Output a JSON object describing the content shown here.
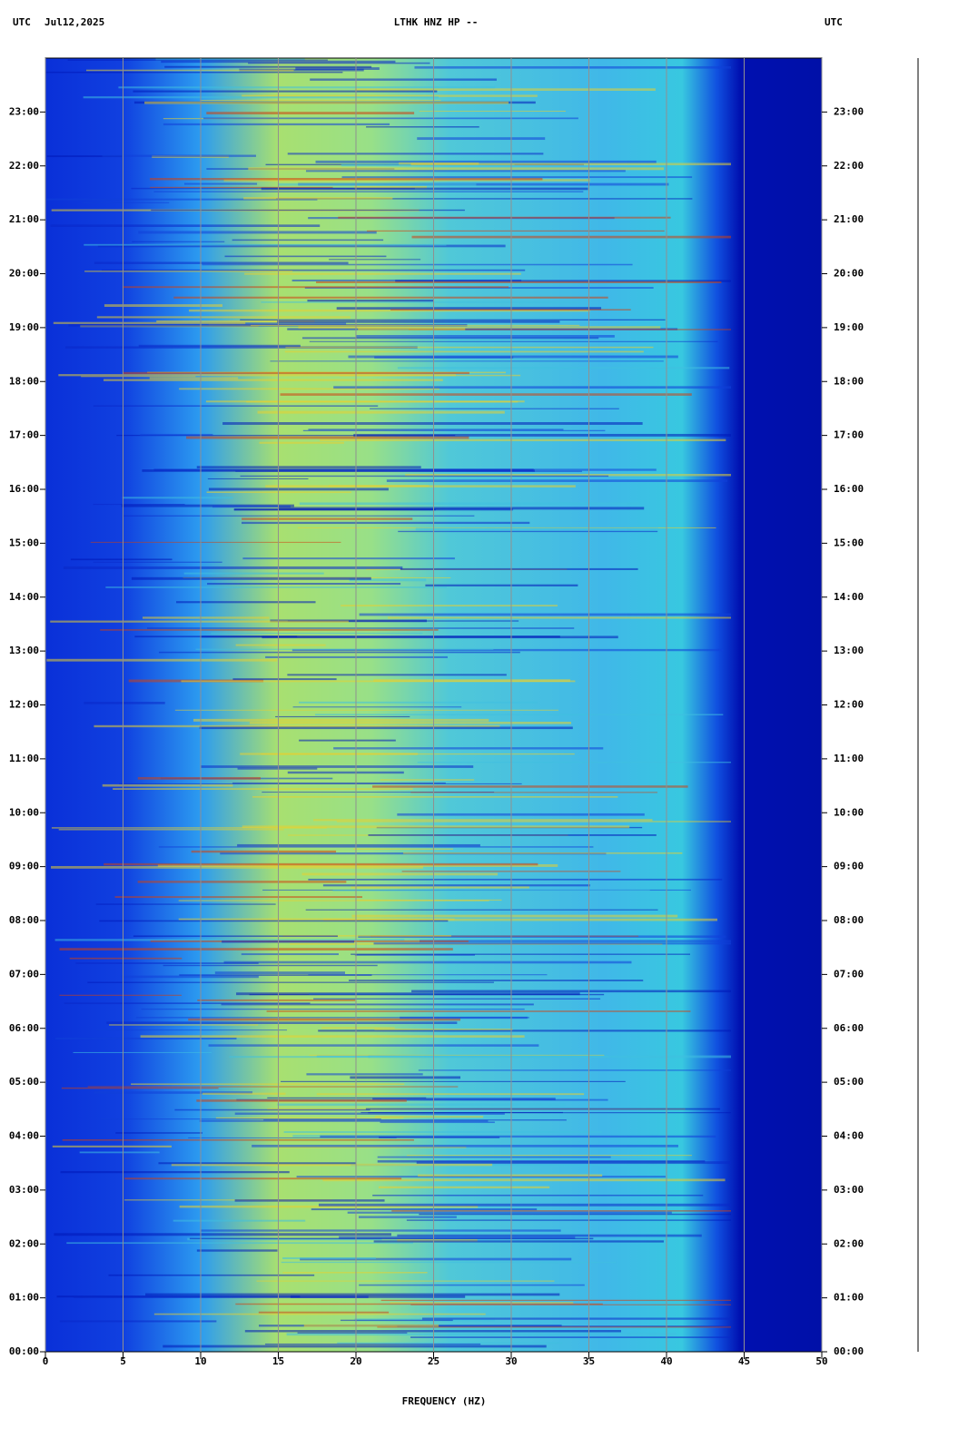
{
  "chart_data": {
    "type": "spectrogram",
    "title": "LTHK HNZ HP --",
    "top_left_label": "UTC",
    "date": "Jul12,2025",
    "top_right_label": "UTC",
    "x_label": "FREQUENCY (HZ)",
    "xlim": [
      0,
      50
    ],
    "xticks": [
      0,
      5,
      10,
      15,
      20,
      25,
      30,
      35,
      40,
      45,
      50
    ],
    "ylim": [
      0,
      24
    ],
    "yticks": [
      {
        "value": 0,
        "label": "00:00"
      },
      {
        "value": 1,
        "label": "01:00"
      },
      {
        "value": 2,
        "label": "02:00"
      },
      {
        "value": 3,
        "label": "03:00"
      },
      {
        "value": 4,
        "label": "04:00"
      },
      {
        "value": 5,
        "label": "05:00"
      },
      {
        "value": 6,
        "label": "06:00"
      },
      {
        "value": 7,
        "label": "07:00"
      },
      {
        "value": 8,
        "label": "08:00"
      },
      {
        "value": 9,
        "label": "09:00"
      },
      {
        "value": 10,
        "label": "10:00"
      },
      {
        "value": 11,
        "label": "11:00"
      },
      {
        "value": 12,
        "label": "12:00"
      },
      {
        "value": 13,
        "label": "13:00"
      },
      {
        "value": 14,
        "label": "14:00"
      },
      {
        "value": 15,
        "label": "15:00"
      },
      {
        "value": 16,
        "label": "16:00"
      },
      {
        "value": 17,
        "label": "17:00"
      },
      {
        "value": 18,
        "label": "18:00"
      },
      {
        "value": 19,
        "label": "19:00"
      },
      {
        "value": 20,
        "label": "20:00"
      },
      {
        "value": 21,
        "label": "21:00"
      },
      {
        "value": 22,
        "label": "22:00"
      },
      {
        "value": 23,
        "label": "23:00"
      }
    ],
    "grid": true
  }
}
